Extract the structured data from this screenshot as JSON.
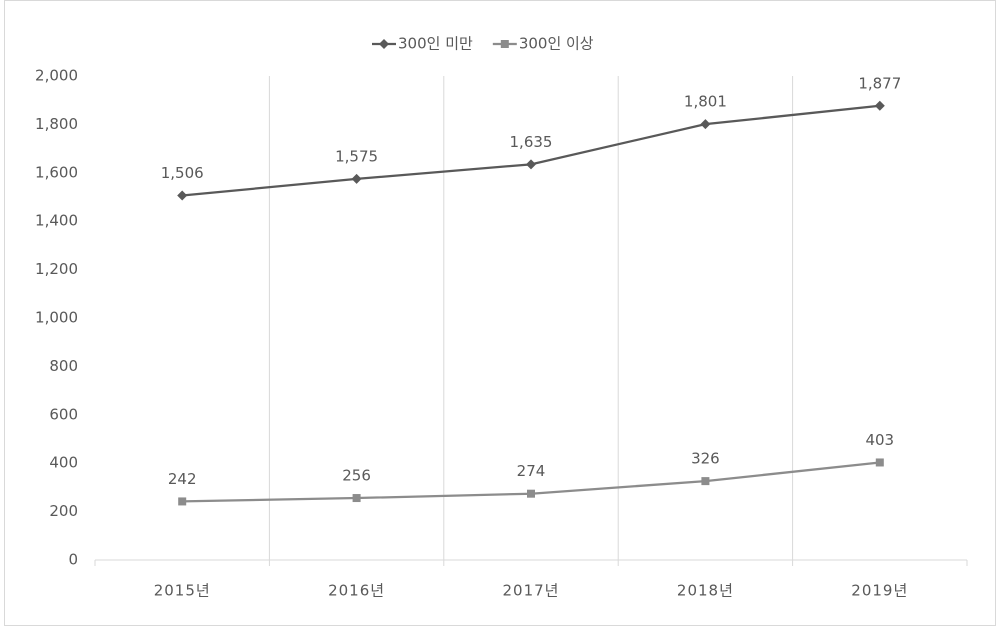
{
  "chart_data": {
    "type": "line",
    "categories": [
      "2015년",
      "2016년",
      "2017년",
      "2018년",
      "2019년"
    ],
    "series": [
      {
        "name": "300인 미만",
        "color": "#595959",
        "marker": "diamond",
        "values": [
          1506,
          1575,
          1635,
          1801,
          1877
        ],
        "value_labels": [
          "1,506",
          "1,575",
          "1,635",
          "1,801",
          "1,877"
        ]
      },
      {
        "name": "300인 이상",
        "color": "#8c8c8c",
        "marker": "square",
        "values": [
          242,
          256,
          274,
          326,
          403
        ]
      }
    ],
    "ylim": [
      0,
      2000
    ],
    "yticks": [
      0,
      200,
      400,
      600,
      800,
      {
        "value": 1000,
        "label": "1,000"
      },
      {
        "value": 1200,
        "label": "1,200"
      },
      {
        "value": 1400,
        "label": "1,400"
      },
      {
        "value": 1600,
        "label": "1,600"
      },
      {
        "value": 1800,
        "label": "1,800"
      },
      {
        "value": 2000,
        "label": "2,000"
      }
    ],
    "legend": "top"
  }
}
